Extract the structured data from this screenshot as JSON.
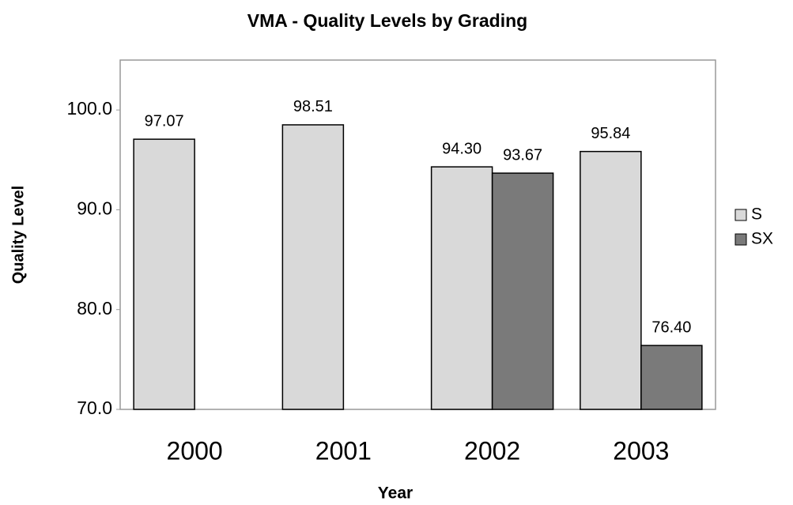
{
  "chart_data": {
    "type": "bar",
    "title": "VMA - Quality Levels by Grading",
    "x_label": "Year",
    "y_label": "Quality Level",
    "categories": [
      "2000",
      "2001",
      "2002",
      "2003"
    ],
    "series": [
      {
        "name": "S",
        "color": "#d9d9d9",
        "values": [
          97.07,
          98.51,
          94.3,
          95.84
        ],
        "value_labels": [
          "97.07",
          "98.51",
          "94.30",
          "95.84"
        ]
      },
      {
        "name": "SX",
        "color": "#7a7a7a",
        "values": [
          null,
          null,
          93.67,
          76.4
        ],
        "value_labels": [
          null,
          null,
          "93.67",
          "76.40"
        ]
      }
    ],
    "ylim": [
      70,
      105
    ],
    "yticks": [
      {
        "value": 70,
        "label": "70.0"
      },
      {
        "value": 80,
        "label": "80.0"
      },
      {
        "value": 90,
        "label": "90.0"
      },
      {
        "value": 100,
        "label": "100.0"
      }
    ],
    "grid": false,
    "legend": "right"
  }
}
